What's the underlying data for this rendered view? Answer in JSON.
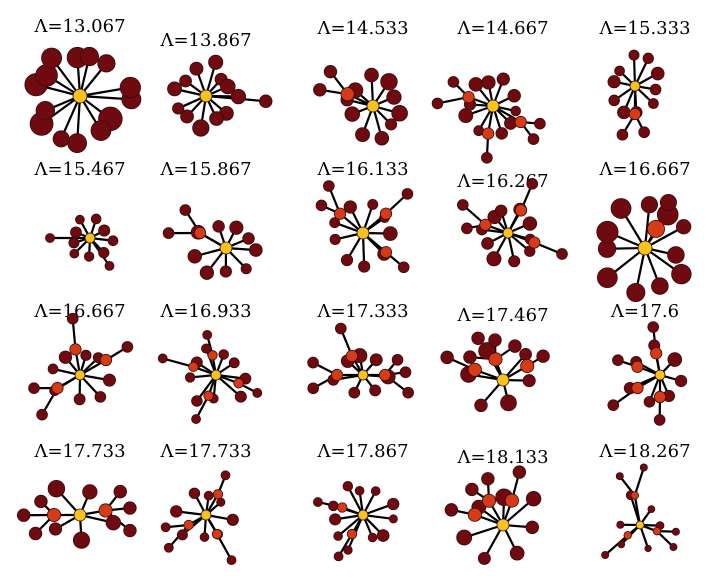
{
  "colors": {
    "hub": "#f7c21c",
    "intermediate": "#d63a16",
    "leaf": "#6e0a10",
    "edge": "#000000"
  },
  "graphs": [
    {
      "label": "Λ=13.067",
      "kind": "star-uniform-large"
    },
    {
      "label": "Λ=13.867",
      "kind": "star-one-extended"
    },
    {
      "label": "Λ=14.533",
      "kind": "star-with-branch"
    },
    {
      "label": "Λ=14.667",
      "kind": "star-with-branches"
    },
    {
      "label": "Λ=15.333",
      "kind": "star-with-branch"
    },
    {
      "label": "Λ=15.467",
      "kind": "star-small-extended"
    },
    {
      "label": "Λ=15.867",
      "kind": "star-with-branch"
    },
    {
      "label": "Λ=16.133",
      "kind": "star-with-branches"
    },
    {
      "label": "Λ=16.267",
      "kind": "star-with-branches"
    },
    {
      "label": "Λ=16.667",
      "kind": "star-uniform-large"
    },
    {
      "label": "Λ=16.667",
      "kind": "star-with-branches"
    },
    {
      "label": "Λ=16.933",
      "kind": "star-with-branches"
    },
    {
      "label": "Λ=17.333",
      "kind": "two-hub"
    },
    {
      "label": "Λ=17.467",
      "kind": "two-hub"
    },
    {
      "label": "Λ=17.6",
      "kind": "star-with-branches"
    },
    {
      "label": "Λ=17.733",
      "kind": "two-hub"
    },
    {
      "label": "Λ=17.733",
      "kind": "star-with-branches"
    },
    {
      "label": "Λ=17.867",
      "kind": "star-with-branches"
    },
    {
      "label": "Λ=18.133",
      "kind": "star-with-branches"
    },
    {
      "label": "Λ=18.267",
      "kind": "star-small-extended"
    }
  ]
}
